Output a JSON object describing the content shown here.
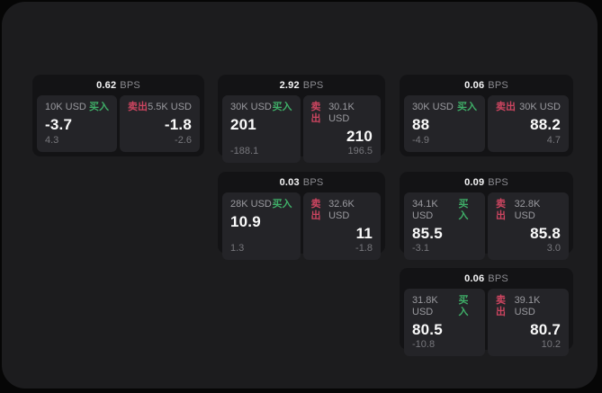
{
  "labels": {
    "bps_unit": "BPS",
    "buy": "买入",
    "sell": "卖出"
  },
  "colors": {
    "page_bg": "#060606",
    "container_bg": "#1c1c1e",
    "card_bg": "#131315",
    "panel_bg": "#242428",
    "buy_green": "#3fae68",
    "sell_red": "#cc4560"
  },
  "cards": [
    {
      "bps": "0.62",
      "buy": {
        "amount": "10K USD",
        "price": "-3.7",
        "change": "4.3"
      },
      "sell": {
        "amount": "5.5K USD",
        "price": "-1.8",
        "change": "-2.6"
      }
    },
    {
      "bps": "2.92",
      "buy": {
        "amount": "30K USD",
        "price": "201",
        "change": "-188.1"
      },
      "sell": {
        "amount": "30.1K USD",
        "price": "210",
        "change": "196.5"
      }
    },
    {
      "bps": "0.06",
      "buy": {
        "amount": "30K USD",
        "price": "88",
        "change": "-4.9"
      },
      "sell": {
        "amount": "30K USD",
        "price": "88.2",
        "change": "4.7"
      }
    },
    {
      "bps": "0.03",
      "buy": {
        "amount": "28K USD",
        "price": "10.9",
        "change": "1.3"
      },
      "sell": {
        "amount": "32.6K USD",
        "price": "11",
        "change": "-1.8"
      }
    },
    {
      "bps": "0.09",
      "buy": {
        "amount": "34.1K USD",
        "price": "85.5",
        "change": "-3.1"
      },
      "sell": {
        "amount": "32.8K USD",
        "price": "85.8",
        "change": "3.0"
      }
    },
    {
      "bps": "0.06",
      "buy": {
        "amount": "31.8K USD",
        "price": "80.5",
        "change": "-10.8"
      },
      "sell": {
        "amount": "39.1K USD",
        "price": "80.7",
        "change": "10.2"
      }
    }
  ]
}
